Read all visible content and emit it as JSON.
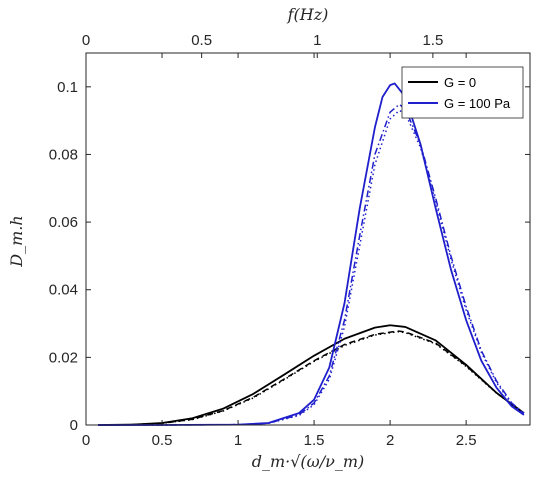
{
  "chart_data": {
    "type": "line",
    "xlabel": "d_m·√(ω/ν_m)",
    "ylabel": "D_m.h",
    "top_xlabel": "f(Hz)",
    "xlim": [
      0,
      2.92
    ],
    "ylim": [
      0,
      0.11
    ],
    "top_xlim": [
      0,
      1.92
    ],
    "x_ticks": [
      0,
      0.5,
      1,
      1.5,
      2,
      2.5
    ],
    "x_tick_labels": [
      "0",
      "0.5",
      "1",
      "1.5",
      "2",
      "2.5"
    ],
    "y_ticks": [
      0,
      0.02,
      0.04,
      0.06,
      0.08,
      0.1
    ],
    "y_tick_labels": [
      "0",
      "0.02",
      "0.04",
      "0.06",
      "0.08",
      "0.1"
    ],
    "top_x_ticks": [
      0,
      0.5,
      1,
      1.5
    ],
    "top_x_tick_labels": [
      "0",
      "0.5",
      "1",
      "1.5"
    ],
    "legend_position": "top-right",
    "legend": [
      {
        "label": "G = 0",
        "color": "#000000"
      },
      {
        "label": "G = 100 Pa",
        "color": "#1f1fcc"
      }
    ],
    "series": [
      {
        "name": "G = 0",
        "color": "#000000",
        "dash": "solid",
        "x": [
          0.08,
          0.3,
          0.5,
          0.7,
          0.9,
          1.1,
          1.3,
          1.5,
          1.7,
          1.9,
          2.0,
          2.1,
          2.3,
          2.5,
          2.7,
          2.88
        ],
        "y": [
          0,
          0.0001,
          0.0006,
          0.002,
          0.0048,
          0.0092,
          0.0148,
          0.0205,
          0.0255,
          0.0288,
          0.0295,
          0.029,
          0.025,
          0.0178,
          0.0095,
          0.0035
        ]
      },
      {
        "name": "",
        "color": "#000000",
        "dash": "dashed",
        "x": [
          0.08,
          0.3,
          0.5,
          0.7,
          0.9,
          1.1,
          1.3,
          1.5,
          1.7,
          1.9,
          2.05,
          2.1,
          2.3,
          2.5,
          2.7,
          2.88
        ],
        "y": [
          0,
          0.0001,
          0.0005,
          0.0017,
          0.0042,
          0.0082,
          0.0135,
          0.019,
          0.0238,
          0.0268,
          0.0278,
          0.0275,
          0.0242,
          0.0175,
          0.0095,
          0.0035
        ]
      },
      {
        "name": "",
        "color": "#000000",
        "dash": "dotted",
        "x": [
          0.08,
          0.3,
          0.5,
          0.7,
          0.9,
          1.1,
          1.3,
          1.5,
          1.7,
          1.9,
          2.05,
          2.1,
          2.3,
          2.5,
          2.7,
          2.88
        ],
        "y": [
          0,
          0.0001,
          0.0005,
          0.0016,
          0.0041,
          0.008,
          0.0133,
          0.0188,
          0.0235,
          0.0266,
          0.0276,
          0.0273,
          0.024,
          0.0173,
          0.0094,
          0.0035
        ]
      },
      {
        "name": "G = 100 Pa",
        "color": "#1f1fcc",
        "dash": "solid",
        "x": [
          0.08,
          0.5,
          1.0,
          1.2,
          1.4,
          1.5,
          1.6,
          1.7,
          1.8,
          1.9,
          1.95,
          2.0,
          2.03,
          2.1,
          2.2,
          2.3,
          2.4,
          2.5,
          2.6,
          2.7,
          2.8,
          2.88
        ],
        "y": [
          0,
          0,
          0.0001,
          0.0006,
          0.0035,
          0.0075,
          0.017,
          0.036,
          0.064,
          0.088,
          0.097,
          0.1005,
          0.101,
          0.097,
          0.083,
          0.064,
          0.046,
          0.031,
          0.019,
          0.011,
          0.0055,
          0.003
        ]
      },
      {
        "name": "",
        "color": "#1f1fcc",
        "dash": "dashdot",
        "x": [
          0.08,
          0.5,
          1.0,
          1.2,
          1.4,
          1.5,
          1.6,
          1.7,
          1.8,
          1.9,
          2.0,
          2.06,
          2.1,
          2.2,
          2.3,
          2.4,
          2.5,
          2.6,
          2.7,
          2.8,
          2.88
        ],
        "y": [
          0,
          0,
          0.0001,
          0.0005,
          0.003,
          0.0065,
          0.0145,
          0.031,
          0.056,
          0.08,
          0.0925,
          0.0948,
          0.0935,
          0.083,
          0.067,
          0.05,
          0.035,
          0.022,
          0.013,
          0.0065,
          0.0035
        ]
      },
      {
        "name": "",
        "color": "#1f1fcc",
        "dash": "dotted",
        "x": [
          0.08,
          0.5,
          1.0,
          1.2,
          1.4,
          1.5,
          1.6,
          1.7,
          1.8,
          1.9,
          2.0,
          2.06,
          2.1,
          2.2,
          2.3,
          2.4,
          2.5,
          2.6,
          2.7,
          2.8,
          2.88
        ],
        "y": [
          0,
          0,
          0.0001,
          0.0005,
          0.0028,
          0.006,
          0.0135,
          0.029,
          0.053,
          0.077,
          0.0905,
          0.093,
          0.0922,
          0.082,
          0.066,
          0.049,
          0.034,
          0.0215,
          0.0125,
          0.0062,
          0.0033
        ]
      }
    ]
  }
}
